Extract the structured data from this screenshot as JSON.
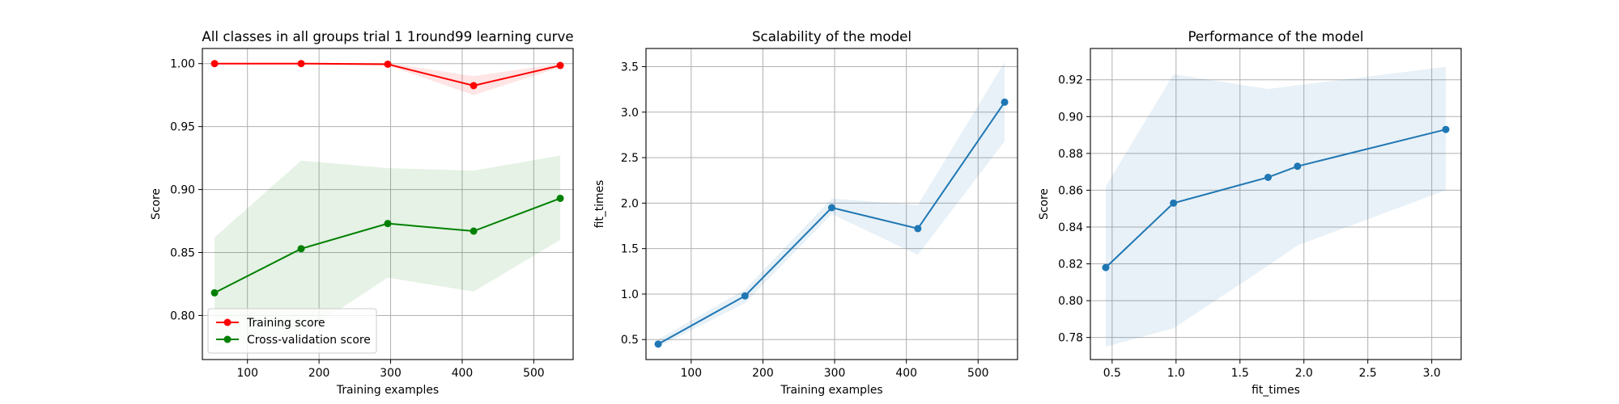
{
  "figure": {
    "background": "#ffffff"
  },
  "chart_data": [
    {
      "type": "line",
      "title": "All classes in all groups trial 1 1round99 learning curve",
      "xlabel": "Training examples",
      "ylabel": "Score",
      "xlim": [
        37,
        555
      ],
      "ylim": [
        0.765,
        1.012
      ],
      "xticks": [
        100,
        200,
        300,
        400,
        500
      ],
      "yticks": [
        0.8,
        0.85,
        0.9,
        0.95,
        1.0
      ],
      "xtick_labels": [
        "100",
        "200",
        "300",
        "400",
        "500"
      ],
      "ytick_labels": [
        "0.80",
        "0.85",
        "0.90",
        "0.95",
        "1.00"
      ],
      "grid": true,
      "legend": "lower-left",
      "x": [
        54,
        175,
        296,
        416,
        537
      ],
      "series": [
        {
          "name": "Training score",
          "color": "#ff0000",
          "values": [
            1.0,
            1.0,
            0.9995,
            0.9825,
            0.9985
          ],
          "band_lower": [
            0.9995,
            0.9995,
            0.9985,
            0.975,
            0.997
          ],
          "band_upper": [
            1.0005,
            1.0005,
            1.0005,
            0.99,
            1.0
          ]
        },
        {
          "name": "Cross-validation score",
          "color": "#008000",
          "values": [
            0.818,
            0.853,
            0.873,
            0.867,
            0.893
          ],
          "band_lower": [
            0.775,
            0.785,
            0.83,
            0.819,
            0.86
          ],
          "band_upper": [
            0.862,
            0.923,
            0.917,
            0.915,
            0.927
          ]
        }
      ]
    },
    {
      "type": "line",
      "title": "Scalability of the model",
      "xlabel": "Training examples",
      "ylabel": "fit_times",
      "xlim": [
        37,
        555
      ],
      "ylim": [
        0.28,
        3.7
      ],
      "xticks": [
        100,
        200,
        300,
        400,
        500
      ],
      "yticks": [
        0.5,
        1.0,
        1.5,
        2.0,
        2.5,
        3.0,
        3.5
      ],
      "xtick_labels": [
        "100",
        "200",
        "300",
        "400",
        "500"
      ],
      "ytick_labels": [
        "0.5",
        "1.0",
        "1.5",
        "2.0",
        "2.5",
        "3.0",
        "3.5"
      ],
      "grid": true,
      "x": [
        54,
        175,
        296,
        416,
        537
      ],
      "series": [
        {
          "color": "#1f77b4",
          "values": [
            0.45,
            0.98,
            1.95,
            1.72,
            3.11
          ],
          "band_lower": [
            0.42,
            0.9,
            1.88,
            1.43,
            2.68
          ],
          "band_upper": [
            0.5,
            1.05,
            2.05,
            1.98,
            3.55
          ]
        }
      ]
    },
    {
      "type": "line",
      "title": "Performance of the model",
      "xlabel": "fit_times",
      "ylabel": "Score",
      "xlim": [
        0.33,
        3.23
      ],
      "ylim": [
        0.768,
        0.937
      ],
      "xticks": [
        0.5,
        1.0,
        1.5,
        2.0,
        2.5,
        3.0
      ],
      "yticks": [
        0.78,
        0.8,
        0.82,
        0.84,
        0.86,
        0.88,
        0.9,
        0.92
      ],
      "xtick_labels": [
        "0.5",
        "1.0",
        "1.5",
        "2.0",
        "2.5",
        "3.0"
      ],
      "ytick_labels": [
        "0.78",
        "0.80",
        "0.82",
        "0.84",
        "0.86",
        "0.88",
        "0.90",
        "0.92"
      ],
      "grid": true,
      "x": [
        0.45,
        0.98,
        1.72,
        1.95,
        3.11
      ],
      "series": [
        {
          "color": "#1f77b4",
          "values": [
            0.818,
            0.853,
            0.867,
            0.873,
            0.893
          ],
          "band_lower": [
            0.775,
            0.785,
            0.819,
            0.83,
            0.86
          ],
          "band_upper": [
            0.862,
            0.923,
            0.915,
            0.917,
            0.927
          ]
        }
      ]
    }
  ]
}
